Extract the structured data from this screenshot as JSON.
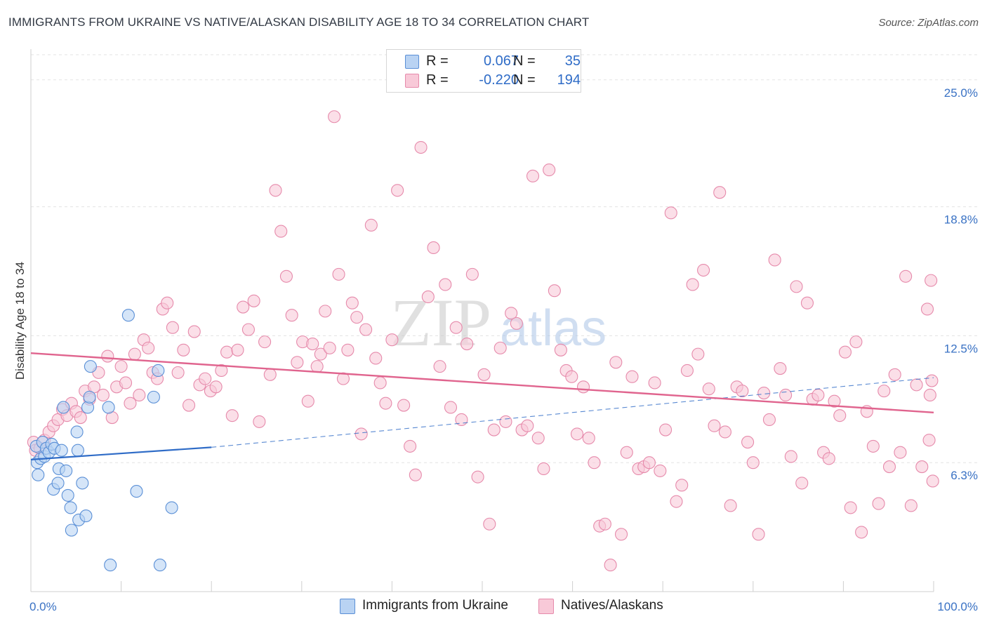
{
  "header": {
    "title": "IMMIGRANTS FROM UKRAINE VS NATIVE/ALASKAN DISABILITY AGE 18 TO 34 CORRELATION CHART",
    "source": "Source: ZipAtlas.com"
  },
  "legend": {
    "rows": [
      {
        "r_label": "R =",
        "r_value": "0.067",
        "n_label": "N =",
        "n_value": "35"
      },
      {
        "r_label": "R =",
        "r_value": "-0.220",
        "n_label": "N =",
        "n_value": "194"
      }
    ]
  },
  "watermark": {
    "zip": "ZIP",
    "atlas": "atlas"
  },
  "colors": {
    "blue_fill": "#b9d3f3",
    "blue_stroke": "#5a8fd6",
    "blue_line": "#2f6cc7",
    "pink_fill": "#f8c9d8",
    "pink_stroke": "#e68aab",
    "pink_line": "#e0648e",
    "axis_label": "#3a72c4",
    "grid": "#e3e3e3"
  },
  "chart_data": {
    "type": "scatter",
    "title": "IMMIGRANTS FROM UKRAINE VS NATIVE/ALASKAN DISABILITY AGE 18 TO 34 CORRELATION CHART",
    "xlabel": "",
    "ylabel": "Disability Age 18 to 34",
    "xlim": [
      0,
      100
    ],
    "ylim": [
      0,
      26.5
    ],
    "x_tick_labels": [
      "0.0%",
      "100.0%"
    ],
    "y_ticks": [
      6.3,
      12.5,
      18.8,
      25.0
    ],
    "y_tick_labels": [
      "6.3%",
      "12.5%",
      "18.8%",
      "25.0%"
    ],
    "series": [
      {
        "name": "Immigrants from Ukraine",
        "color": "blue",
        "r": 0.067,
        "n": 35,
        "trend": {
          "x0": 0,
          "y0": 6.45,
          "x1": 20,
          "y1": 7.05,
          "dash_x1": 100,
          "dash_y1": 10.45
        },
        "points": [
          [
            0.6,
            7.1
          ],
          [
            0.7,
            6.3
          ],
          [
            0.8,
            5.7
          ],
          [
            1.1,
            6.5
          ],
          [
            1.3,
            7.3
          ],
          [
            1.5,
            6.6
          ],
          [
            1.7,
            7.0
          ],
          [
            2.0,
            6.8
          ],
          [
            2.3,
            7.2
          ],
          [
            2.6,
            7.0
          ],
          [
            2.5,
            5.0
          ],
          [
            3.0,
            5.3
          ],
          [
            3.1,
            6.0
          ],
          [
            3.4,
            6.9
          ],
          [
            3.6,
            9.0
          ],
          [
            3.9,
            5.9
          ],
          [
            4.1,
            4.7
          ],
          [
            4.4,
            4.1
          ],
          [
            4.5,
            3.0
          ],
          [
            5.1,
            7.8
          ],
          [
            5.2,
            6.9
          ],
          [
            5.3,
            3.5
          ],
          [
            5.7,
            5.3
          ],
          [
            6.1,
            3.7
          ],
          [
            6.3,
            9.0
          ],
          [
            6.5,
            9.5
          ],
          [
            6.6,
            11.0
          ],
          [
            8.6,
            9.0
          ],
          [
            8.8,
            1.3
          ],
          [
            10.8,
            13.5
          ],
          [
            11.7,
            4.9
          ],
          [
            13.6,
            9.5
          ],
          [
            14.1,
            10.8
          ],
          [
            14.3,
            1.3
          ],
          [
            15.6,
            4.1
          ]
        ]
      },
      {
        "name": "Natives/Alaskans",
        "color": "pink",
        "r": -0.22,
        "n": 194,
        "trend": {
          "x0": 0,
          "y0": 11.65,
          "x1": 100,
          "y1": 8.75
        },
        "points": [
          [
            0.3,
            7.3
          ],
          [
            0.5,
            6.9
          ],
          [
            1.0,
            7.0
          ],
          [
            1.5,
            7.4
          ],
          [
            2.0,
            7.8
          ],
          [
            2.5,
            8.1
          ],
          [
            3.0,
            8.4
          ],
          [
            3.5,
            8.9
          ],
          [
            4.0,
            8.6
          ],
          [
            4.5,
            9.2
          ],
          [
            5.0,
            8.8
          ],
          [
            5.5,
            8.5
          ],
          [
            6.0,
            9.8
          ],
          [
            6.5,
            9.4
          ],
          [
            7.0,
            10.0
          ],
          [
            7.5,
            10.7
          ],
          [
            8.0,
            9.6
          ],
          [
            8.5,
            11.5
          ],
          [
            9.0,
            8.5
          ],
          [
            9.5,
            10.0
          ],
          [
            10.0,
            11.0
          ],
          [
            10.5,
            10.2
          ],
          [
            11.0,
            9.2
          ],
          [
            11.5,
            11.6
          ],
          [
            12.0,
            9.6
          ],
          [
            12.5,
            12.3
          ],
          [
            13.0,
            11.9
          ],
          [
            13.5,
            10.7
          ],
          [
            14.0,
            10.4
          ],
          [
            14.6,
            13.8
          ],
          [
            15.1,
            14.1
          ],
          [
            15.7,
            12.9
          ],
          [
            16.3,
            10.7
          ],
          [
            16.9,
            11.8
          ],
          [
            17.5,
            9.1
          ],
          [
            18.1,
            12.7
          ],
          [
            18.7,
            10.1
          ],
          [
            19.3,
            10.4
          ],
          [
            19.9,
            9.8
          ],
          [
            20.5,
            10.0
          ],
          [
            21.1,
            10.8
          ],
          [
            21.7,
            11.7
          ],
          [
            22.3,
            8.6
          ],
          [
            22.9,
            11.8
          ],
          [
            23.5,
            13.9
          ],
          [
            24.1,
            12.8
          ],
          [
            24.7,
            14.2
          ],
          [
            25.3,
            8.3
          ],
          [
            25.9,
            12.2
          ],
          [
            26.5,
            10.6
          ],
          [
            27.1,
            19.6
          ],
          [
            27.7,
            17.6
          ],
          [
            28.3,
            15.4
          ],
          [
            28.9,
            13.5
          ],
          [
            29.5,
            11.2
          ],
          [
            30.1,
            12.2
          ],
          [
            30.7,
            9.3
          ],
          [
            31.2,
            12.1
          ],
          [
            31.7,
            11.0
          ],
          [
            32.1,
            11.6
          ],
          [
            32.6,
            13.7
          ],
          [
            33.1,
            11.9
          ],
          [
            33.6,
            23.2
          ],
          [
            34.1,
            15.5
          ],
          [
            34.6,
            10.4
          ],
          [
            35.1,
            11.8
          ],
          [
            35.6,
            14.1
          ],
          [
            36.1,
            13.4
          ],
          [
            36.6,
            7.7
          ],
          [
            37.1,
            12.8
          ],
          [
            37.7,
            17.9
          ],
          [
            38.2,
            11.4
          ],
          [
            38.7,
            10.2
          ],
          [
            39.3,
            9.2
          ],
          [
            40.0,
            12.3
          ],
          [
            40.6,
            19.6
          ],
          [
            41.3,
            9.1
          ],
          [
            42.0,
            7.1
          ],
          [
            42.6,
            5.7
          ],
          [
            43.2,
            21.7
          ],
          [
            44.0,
            14.4
          ],
          [
            44.6,
            16.8
          ],
          [
            45.3,
            11.0
          ],
          [
            45.9,
            15.0
          ],
          [
            46.5,
            9.0
          ],
          [
            47.1,
            12.9
          ],
          [
            47.7,
            8.4
          ],
          [
            48.3,
            12.1
          ],
          [
            48.9,
            15.5
          ],
          [
            49.5,
            5.6
          ],
          [
            50.2,
            10.6
          ],
          [
            50.8,
            3.3
          ],
          [
            51.3,
            7.9
          ],
          [
            52.0,
            11.9
          ],
          [
            52.6,
            8.3
          ],
          [
            53.2,
            13.6
          ],
          [
            53.8,
            13.1
          ],
          [
            54.4,
            7.9
          ],
          [
            55.0,
            8.1
          ],
          [
            55.6,
            20.3
          ],
          [
            56.2,
            7.5
          ],
          [
            56.8,
            6.0
          ],
          [
            57.4,
            20.6
          ],
          [
            58.0,
            14.7
          ],
          [
            58.7,
            11.8
          ],
          [
            59.3,
            10.8
          ],
          [
            59.9,
            10.5
          ],
          [
            60.5,
            7.7
          ],
          [
            61.2,
            10.0
          ],
          [
            61.8,
            7.5
          ],
          [
            62.4,
            6.3
          ],
          [
            63.0,
            3.2
          ],
          [
            63.6,
            3.3
          ],
          [
            64.2,
            1.3
          ],
          [
            64.8,
            11.2
          ],
          [
            65.4,
            2.8
          ],
          [
            66.0,
            6.8
          ],
          [
            66.6,
            10.5
          ],
          [
            67.3,
            6.0
          ],
          [
            67.9,
            6.1
          ],
          [
            68.5,
            6.3
          ],
          [
            69.1,
            10.2
          ],
          [
            69.7,
            5.9
          ],
          [
            70.3,
            7.9
          ],
          [
            70.9,
            18.5
          ],
          [
            71.5,
            4.4
          ],
          [
            72.1,
            5.2
          ],
          [
            72.7,
            10.8
          ],
          [
            73.3,
            15.0
          ],
          [
            73.9,
            11.6
          ],
          [
            74.5,
            15.7
          ],
          [
            75.1,
            9.9
          ],
          [
            75.7,
            8.1
          ],
          [
            76.3,
            19.5
          ],
          [
            76.9,
            7.8
          ],
          [
            77.5,
            4.2
          ],
          [
            78.2,
            10.0
          ],
          [
            78.8,
            9.8
          ],
          [
            79.4,
            7.3
          ],
          [
            80.0,
            6.3
          ],
          [
            80.6,
            2.8
          ],
          [
            81.2,
            9.7
          ],
          [
            81.8,
            8.4
          ],
          [
            82.4,
            16.2
          ],
          [
            83.0,
            10.9
          ],
          [
            83.6,
            9.6
          ],
          [
            84.2,
            6.6
          ],
          [
            84.8,
            14.9
          ],
          [
            85.4,
            5.3
          ],
          [
            86.0,
            14.1
          ],
          [
            86.6,
            9.4
          ],
          [
            87.2,
            9.6
          ],
          [
            87.8,
            6.8
          ],
          [
            88.4,
            6.5
          ],
          [
            89.0,
            9.3
          ],
          [
            89.6,
            8.6
          ],
          [
            90.2,
            11.7
          ],
          [
            90.8,
            4.1
          ],
          [
            91.4,
            12.2
          ],
          [
            92.0,
            2.9
          ],
          [
            92.6,
            8.8
          ],
          [
            93.3,
            7.1
          ],
          [
            93.9,
            4.3
          ],
          [
            94.5,
            9.8
          ],
          [
            95.1,
            6.1
          ],
          [
            95.7,
            10.6
          ],
          [
            96.3,
            6.8
          ],
          [
            96.9,
            15.4
          ],
          [
            97.5,
            4.2
          ],
          [
            98.1,
            10.1
          ],
          [
            98.7,
            6.1
          ],
          [
            99.3,
            13.8
          ],
          [
            99.5,
            7.4
          ],
          [
            99.6,
            9.6
          ],
          [
            99.7,
            15.2
          ],
          [
            99.8,
            10.3
          ],
          [
            99.9,
            5.4
          ]
        ]
      }
    ]
  },
  "bottom_legend": [
    {
      "label": "Immigrants from Ukraine"
    },
    {
      "label": "Natives/Alaskans"
    }
  ]
}
